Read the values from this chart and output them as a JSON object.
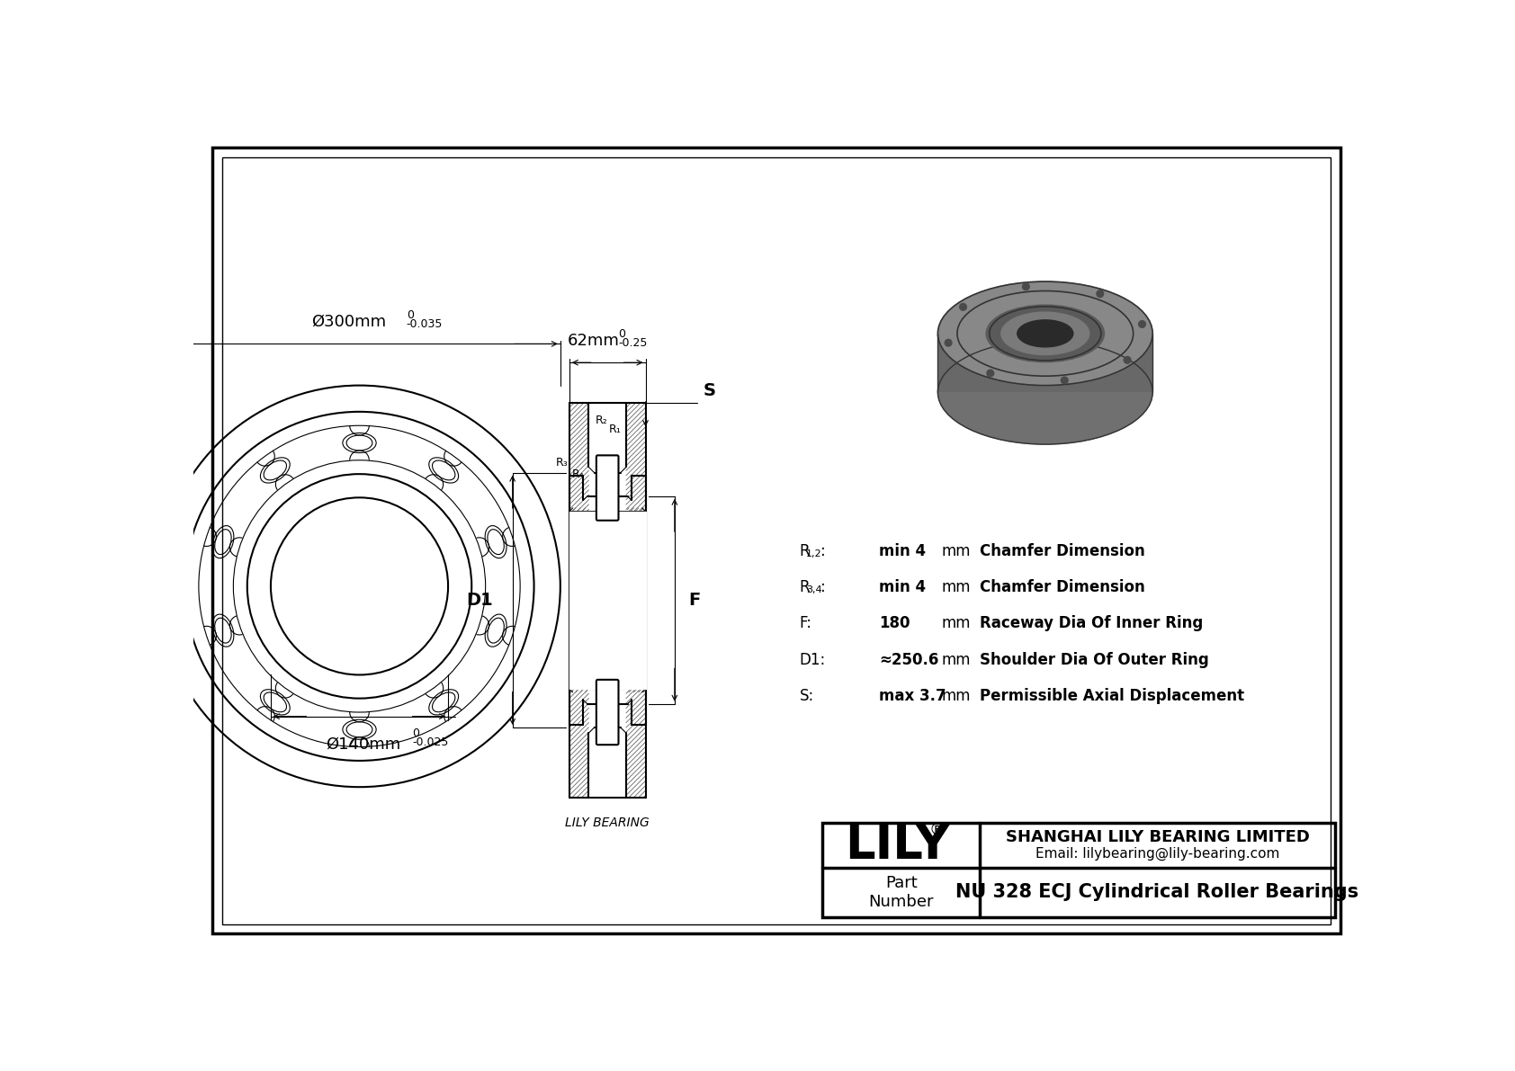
{
  "bg_color": "#ffffff",
  "line_color": "#000000",
  "outer_dia_label": "Ø300mm",
  "outer_dia_tol_top": "0",
  "outer_dia_tol_bot": "-0.035",
  "inner_dia_label": "Ø140mm",
  "inner_dia_tol_top": "0",
  "inner_dia_tol_bot": "-0.025",
  "width_label": "62mm",
  "width_tol_top": "0",
  "width_tol_bot": "-0.25",
  "params": [
    {
      "symbol": "R1,2:",
      "value": "min 4",
      "unit": "mm",
      "desc": "Chamfer Dimension"
    },
    {
      "symbol": "R3,4:",
      "value": "min 4",
      "unit": "mm",
      "desc": "Chamfer Dimension"
    },
    {
      "symbol": "F:",
      "value": "180",
      "unit": "mm",
      "desc": "Raceway Dia Of Inner Ring"
    },
    {
      "symbol": "D1:",
      "value": "≈250.6",
      "unit": "mm",
      "desc": "Shoulder Dia Of Outer Ring"
    },
    {
      "symbol": "S:",
      "value": "max 3.7",
      "unit": "mm",
      "desc": "Permissible Axial Displacement"
    }
  ],
  "company": "SHANGHAI LILY BEARING LIMITED",
  "email": "Email: lilybearing@lily-bearing.com",
  "part_label": "Part\nNumber",
  "part_number": "NU 328 ECJ Cylindrical Roller Bearings",
  "logo": "LILY",
  "lily_bearing_label": "LILY BEARING"
}
